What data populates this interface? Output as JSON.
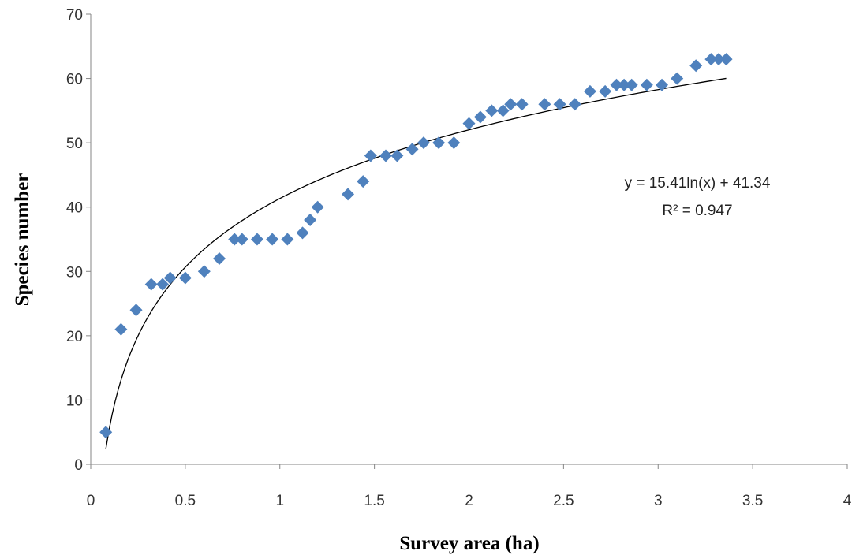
{
  "chart_data": {
    "type": "scatter",
    "xlabel": "Survey area (ha)",
    "ylabel": "Species number",
    "xlim": [
      0,
      4
    ],
    "ylim": [
      0,
      70
    ],
    "x_ticks": [
      "0",
      "0.5",
      "1",
      "1.5",
      "2",
      "2.5",
      "3",
      "3.5",
      "4"
    ],
    "y_ticks": [
      "0",
      "10",
      "20",
      "30",
      "40",
      "50",
      "60",
      "70"
    ],
    "grid": false,
    "legend": "none",
    "marker_color": "#4F81BD",
    "series": [
      {
        "x": [
          0.08,
          0.16,
          0.24,
          0.32,
          0.38,
          0.42,
          0.5,
          0.6,
          0.68,
          0.76,
          0.8,
          0.88,
          0.96,
          1.04,
          1.12,
          1.16,
          1.2,
          1.36,
          1.44,
          1.48,
          1.56,
          1.62,
          1.7,
          1.76,
          1.84,
          1.92,
          2.0,
          2.06,
          2.12,
          2.18,
          2.22,
          2.28,
          2.4,
          2.48,
          2.56,
          2.64,
          2.72,
          2.78,
          2.82,
          2.86,
          2.94,
          3.02,
          3.1,
          3.2,
          3.28,
          3.32,
          3.36
        ],
        "y": [
          5,
          21,
          24,
          28,
          28,
          29,
          29,
          30,
          32,
          35,
          35,
          35,
          35,
          35,
          36,
          38,
          40,
          42,
          44,
          48,
          48,
          48,
          49,
          50,
          50,
          50,
          53,
          54,
          55,
          55,
          56,
          56,
          56,
          56,
          56,
          58,
          58,
          59,
          59,
          59,
          59,
          59,
          60,
          62,
          63,
          63,
          63
        ]
      }
    ],
    "trendline": {
      "type": "logarithmic",
      "a": 15.41,
      "b": 41.34,
      "x_range": [
        0.08,
        3.36
      ],
      "color": "#000000",
      "equation_label": "y = 15.41ln(x) + 41.34",
      "r2_label": "R² = 0.947"
    }
  }
}
